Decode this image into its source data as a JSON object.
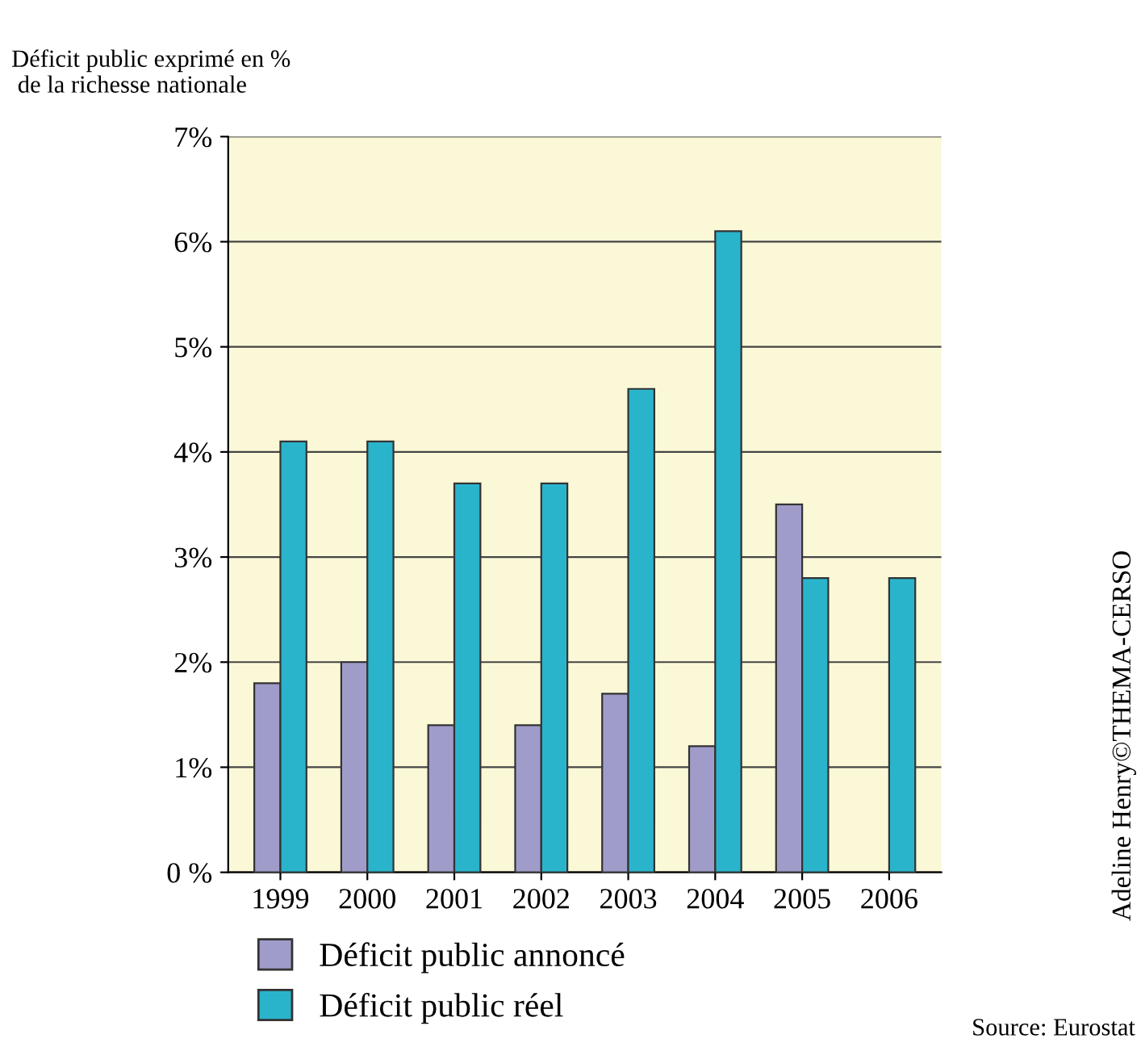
{
  "chart_data": {
    "type": "bar",
    "ylabel": "Déficit public exprimé en %\n de la richesse nationale",
    "categories": [
      "1999",
      "2000",
      "2001",
      "2002",
      "2003",
      "2004",
      "2005",
      "2006"
    ],
    "series": [
      {
        "name": "Déficit public annoncé",
        "color": "#a09cca",
        "values": [
          1.8,
          2.0,
          1.4,
          1.4,
          1.7,
          1.2,
          3.5,
          null
        ]
      },
      {
        "name": "Déficit public réel",
        "color": "#2ab4cc",
        "values": [
          4.1,
          4.1,
          3.7,
          3.7,
          4.6,
          6.1,
          2.8,
          2.8
        ]
      }
    ],
    "ylim": [
      0,
      7
    ],
    "yticks": [
      {
        "value": 0,
        "label": "0 %"
      },
      {
        "value": 1,
        "label": "1%"
      },
      {
        "value": 2,
        "label": "2%"
      },
      {
        "value": 3,
        "label": "3%"
      },
      {
        "value": 4,
        "label": "4%"
      },
      {
        "value": 5,
        "label": "5%"
      },
      {
        "value": 6,
        "label": "6%"
      },
      {
        "value": 7,
        "label": "7%"
      }
    ],
    "grid": "y",
    "legend": "bottom",
    "annotations": [
      "Adeline Henry©THEMA-CERSO",
      "Source: Eurostat"
    ]
  }
}
